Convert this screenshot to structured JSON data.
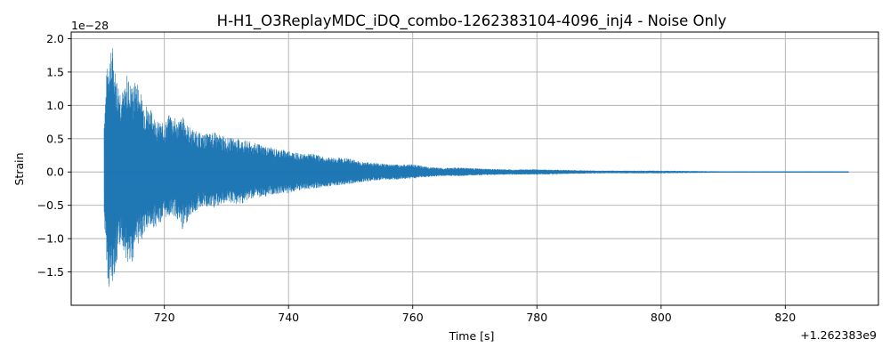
{
  "chart_data": {
    "type": "line",
    "title": "H-H1_O3ReplayMDC_iDQ_combo-1262383104-4096_inj4 - Noise Only",
    "xlabel": "Time [s]",
    "ylabel": "Strain",
    "x_offset_label": "+1.262383e9",
    "y_exponent_label": "1e−28",
    "xlim": [
      705,
      835
    ],
    "ylim": [
      -2.0,
      2.1
    ],
    "x_ticks": [
      720,
      740,
      760,
      780,
      800,
      820
    ],
    "x_tick_labels": [
      "720",
      "740",
      "760",
      "780",
      "800",
      "820"
    ],
    "y_ticks": [
      -1.5,
      -1.0,
      -0.5,
      0.0,
      0.5,
      1.0,
      1.5,
      2.0
    ],
    "y_tick_labels": [
      "−1.5",
      "−1.0",
      "−0.5",
      "0.0",
      "0.5",
      "1.0",
      "1.5",
      "2.0"
    ],
    "grid": true,
    "series": [
      {
        "color": "#1f77b4",
        "x": [
          710.3,
          710.7,
          711.0,
          711.3,
          711.7,
          712.0,
          712.5,
          713.0,
          713.5,
          714.0,
          714.5,
          715.0,
          715.5,
          716.0,
          716.5,
          717.0,
          718.0,
          719.0,
          720.0,
          721.0,
          722.0,
          723.0,
          724.0,
          725.0,
          726.0,
          727.0,
          728.0,
          730.0,
          732.0,
          734.0,
          736.0,
          738.0,
          740.0,
          742.0,
          744.0,
          746.0,
          748.0,
          750.0,
          752.0,
          754.0,
          756.0,
          758.0,
          760.0,
          762.0,
          765.0,
          768.0,
          771.0,
          775.0,
          780.0,
          785.0,
          790.0,
          795.0,
          800.0,
          810.0,
          820.0,
          830.2
        ],
        "upper": [
          0.85,
          1.5,
          1.87,
          1.8,
          1.93,
          1.6,
          1.4,
          1.3,
          1.2,
          1.5,
          1.35,
          1.3,
          1.42,
          1.3,
          1.1,
          1.05,
          0.92,
          0.75,
          0.73,
          0.9,
          0.78,
          0.83,
          0.68,
          0.62,
          0.57,
          0.58,
          0.6,
          0.52,
          0.5,
          0.45,
          0.4,
          0.35,
          0.33,
          0.27,
          0.28,
          0.22,
          0.22,
          0.2,
          0.15,
          0.14,
          0.12,
          0.11,
          0.12,
          0.08,
          0.06,
          0.07,
          0.05,
          0.04,
          0.04,
          0.03,
          0.02,
          0.02,
          0.02,
          0.01,
          0.01,
          0.01
        ],
        "lower": [
          -0.75,
          -1.35,
          -1.8,
          -1.7,
          -1.65,
          -1.5,
          -1.4,
          -1.0,
          -1.2,
          -1.38,
          -1.5,
          -1.3,
          -1.0,
          -1.15,
          -0.95,
          -0.9,
          -0.85,
          -0.8,
          -0.7,
          -0.65,
          -0.7,
          -0.9,
          -0.67,
          -0.6,
          -0.52,
          -0.55,
          -0.55,
          -0.45,
          -0.5,
          -0.4,
          -0.38,
          -0.33,
          -0.32,
          -0.28,
          -0.25,
          -0.22,
          -0.2,
          -0.18,
          -0.15,
          -0.13,
          -0.12,
          -0.11,
          -0.1,
          -0.08,
          -0.06,
          -0.06,
          -0.05,
          -0.04,
          -0.04,
          -0.03,
          -0.02,
          -0.02,
          -0.02,
          -0.01,
          -0.01,
          -0.01
        ]
      }
    ]
  }
}
